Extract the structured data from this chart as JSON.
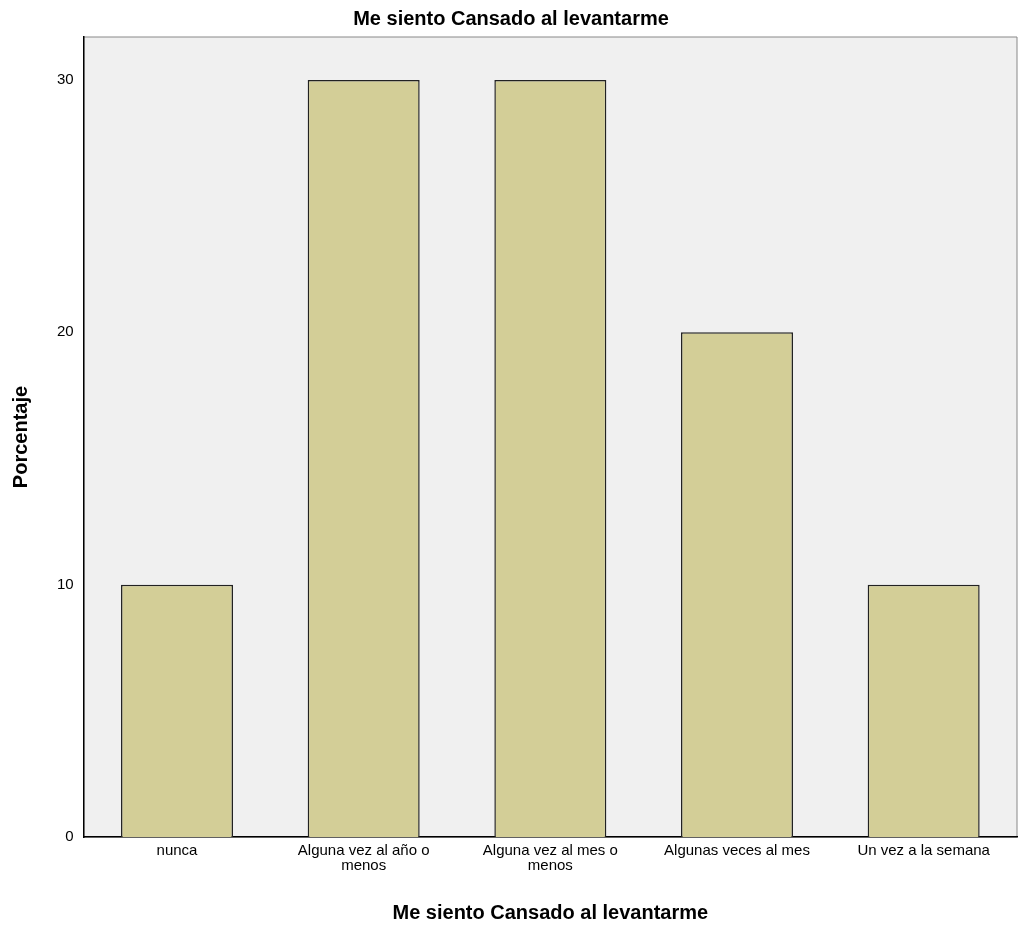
{
  "chart_data": {
    "type": "bar",
    "title": "Me siento Cansado al levantarme",
    "xlabel": "Me siento Cansado al levantarme",
    "ylabel": "Porcentaje",
    "categories": [
      "nunca",
      "Alguna vez al año o menos",
      "Alguna vez al mes o menos",
      "Algunas veces al mes",
      "Un vez a la semana"
    ],
    "values": [
      10,
      30,
      30,
      20,
      10
    ],
    "color": "#d3ce97",
    "ylim": [
      0,
      31.7
    ],
    "yticks": [
      0,
      10,
      20,
      30
    ],
    "grid": false,
    "legend": false
  }
}
